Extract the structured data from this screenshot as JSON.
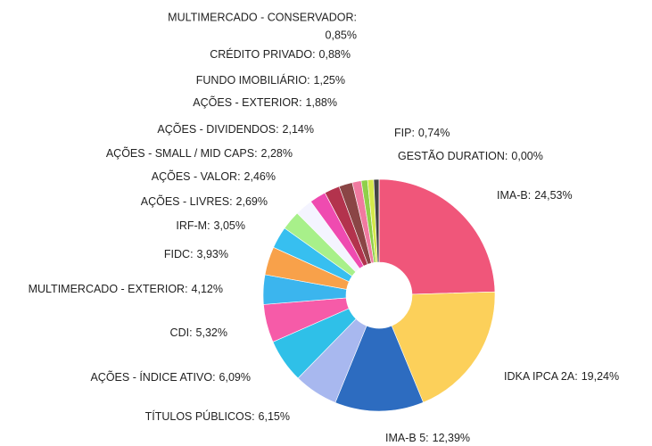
{
  "chart_data": {
    "type": "donut",
    "categories": [
      "IMA-B:",
      "IDKA IPCA 2A:",
      "IMA-B 5:",
      "TÍTULOS PÚBLICOS:",
      "AÇÕES - ÍNDICE ATIVO:",
      "CDI:",
      "MULTIMERCADO - EXTERIOR:",
      "FIDC:",
      "IRF-M:",
      "AÇÕES - LIVRES:",
      "AÇÕES - VALOR:",
      "AÇÕES - SMALL / MID CAPS:",
      "AÇÕES - DIVIDENDOS:",
      "AÇÕES - EXTERIOR:",
      "FUNDO IMOBILIÁRIO:",
      "CRÉDITO PRIVADO:",
      "MULTIMERCADO - CONSERVADOR:",
      "FIP:",
      "GESTÃO DURATION:"
    ],
    "values": [
      24.53,
      19.24,
      12.39,
      6.15,
      6.09,
      5.32,
      4.12,
      3.93,
      3.05,
      2.69,
      2.46,
      2.28,
      2.14,
      1.88,
      1.25,
      0.88,
      0.85,
      0.74,
      0.0
    ],
    "value_labels": [
      "24,53%",
      "19,24%",
      "12,39%",
      "6,15%",
      "6,09%",
      "5,32%",
      "4,12%",
      "3,93%",
      "3,05%",
      "2,69%",
      "2,46%",
      "2,28%",
      "2,14%",
      "1,88%",
      "1,25%",
      "0,88%",
      "0,85%",
      "0,74%",
      "0,00%"
    ],
    "colors": [
      "#f0567a",
      "#fcd05a",
      "#2d6cc0",
      "#a8b8ef",
      "#2fc0e8",
      "#f65ba8",
      "#3bb5ee",
      "#f8a14a",
      "#37bff0",
      "#a8f08a",
      "#f4f4ff",
      "#ef4bb0",
      "#b3334d",
      "#8a4545",
      "#f07aa0",
      "#8fd04a",
      "#d4e84a",
      "#444444",
      "#999999"
    ]
  }
}
